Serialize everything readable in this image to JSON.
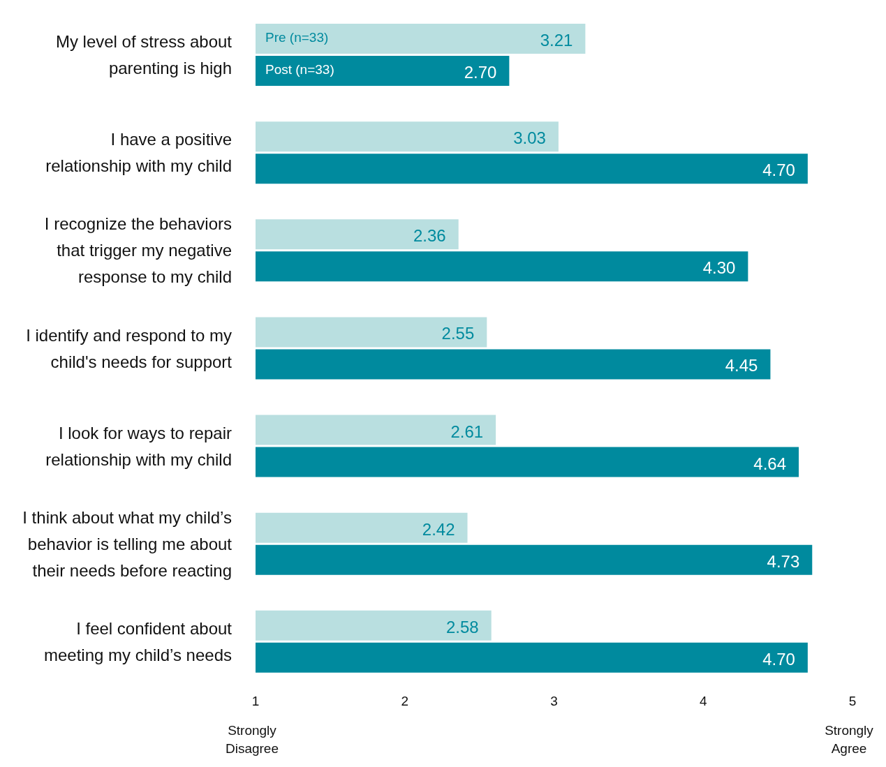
{
  "chart_data": {
    "type": "bar",
    "orientation": "horizontal",
    "categories": [
      "My level of stress about parenting is high",
      "I have a positive relationship with my child",
      "I recognize the behaviors that trigger my negative response to my child",
      "I identify and respond to my child's needs for support",
      "I look for ways to repair relationship with my child",
      "I think about what my child’s behavior is telling me about their needs before reacting",
      "I feel confident about meeting my child’s needs"
    ],
    "series": [
      {
        "name": "Pre (n=33)",
        "color": "#b9dfe0",
        "values": [
          3.21,
          3.03,
          2.36,
          2.55,
          2.61,
          2.42,
          2.58
        ],
        "value_labels": [
          "3.21",
          "3.03",
          "2.36",
          "2.55",
          "2.61",
          "2.42",
          "2.58"
        ]
      },
      {
        "name": "Post (n=33)",
        "color": "#008a9e",
        "values": [
          2.7,
          4.7,
          4.3,
          4.45,
          4.64,
          4.73,
          4.7
        ],
        "value_labels": [
          "2.70",
          "4.70",
          "4.30",
          "4.45",
          "4.64",
          "4.73",
          "4.70"
        ]
      }
    ],
    "xlim": [
      1,
      5
    ],
    "xticks": [
      1,
      2,
      3,
      4,
      5
    ],
    "grid": false,
    "legend": false,
    "annotations": [
      "Strongly Disagree",
      "Strongly Agree"
    ]
  }
}
